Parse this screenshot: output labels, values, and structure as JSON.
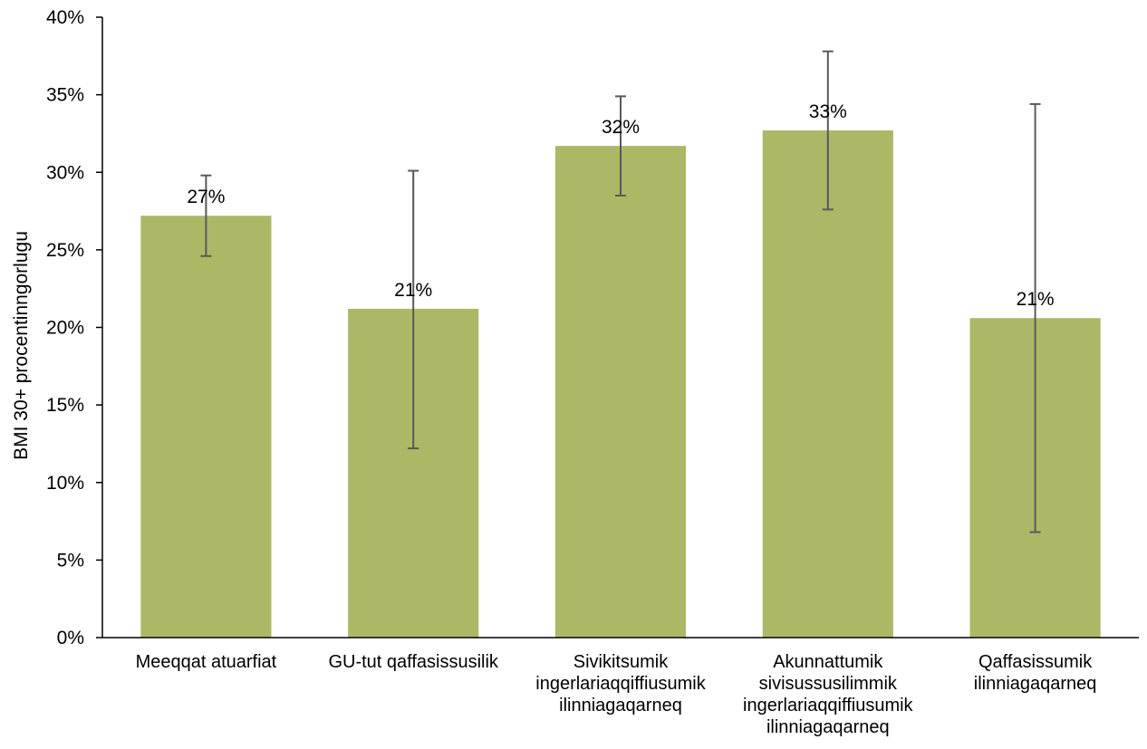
{
  "chart_data": {
    "type": "bar",
    "ylabel": "BMI 30+ procentinngorlugu",
    "ylim": [
      0,
      0.4
    ],
    "yticks": [
      0,
      0.05,
      0.1,
      0.15,
      0.2,
      0.25,
      0.3,
      0.35,
      0.4
    ],
    "ytick_labels": [
      "0%",
      "5%",
      "10%",
      "15%",
      "20%",
      "25%",
      "30%",
      "35%",
      "40%"
    ],
    "categories": [
      [
        "Meeqqat atuarfiat"
      ],
      [
        "GU-tut qaffasissusilik"
      ],
      [
        "Sivikitsumik",
        "ingerlariaqqiffiusumik",
        "ilinniagaqarneq"
      ],
      [
        "Akunnattumik",
        "sivisussusilimmik",
        "ingerlariaqqiffiusumik",
        "ilinniagaqarneq"
      ],
      [
        "Qaffasissumik",
        "ilinniagaqarneq"
      ]
    ],
    "values": [
      0.272,
      0.212,
      0.317,
      0.327,
      0.206
    ],
    "data_labels": [
      "27%",
      "21%",
      "32%",
      "33%",
      "21%"
    ],
    "error_low": [
      0.246,
      0.122,
      0.285,
      0.276,
      0.068
    ],
    "error_high": [
      0.298,
      0.301,
      0.349,
      0.378,
      0.344
    ],
    "bar_color": "#acb865",
    "error_color": "#595959",
    "grid": false
  }
}
